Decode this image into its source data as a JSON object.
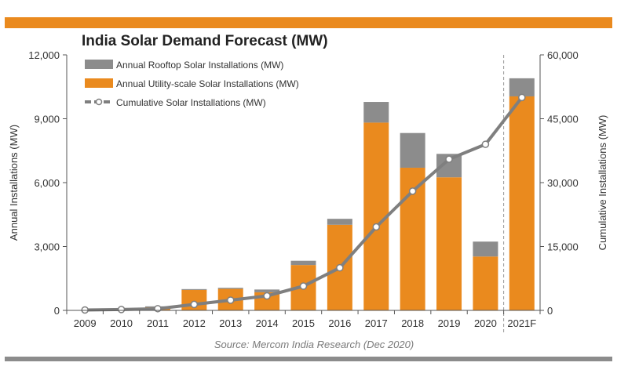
{
  "title": "India Solar Demand Forecast (MW)",
  "source": "Source: Mercom India Research (Dec 2020)",
  "colors": {
    "rooftop": "#8C8C8C",
    "utility": "#EA8A1E",
    "cumulative": "#7F7F7F",
    "accent_bar": "#EA8A1E"
  },
  "chart_data": {
    "type": "bar",
    "stacked": true,
    "categories": [
      "2009",
      "2010",
      "2011",
      "2012",
      "2013",
      "2014",
      "2015",
      "2016",
      "2017",
      "2018",
      "2019",
      "2020",
      "2021F"
    ],
    "series": [
      {
        "name": "Annual Utility-scale Solar Installations (MW)",
        "axis": "left",
        "values": [
          10,
          30,
          150,
          960,
          1010,
          850,
          2130,
          4020,
          8820,
          6700,
          6250,
          2530,
          10050
        ]
      },
      {
        "name": "Annual Rooftop Solar Installations (MW)",
        "axis": "left",
        "values": [
          5,
          10,
          40,
          40,
          50,
          130,
          200,
          280,
          970,
          1630,
          1100,
          700,
          850
        ]
      },
      {
        "name": "Cumulative Solar Installations (MW)",
        "type": "line",
        "axis": "right",
        "values": [
          100,
          200,
          400,
          1400,
          2400,
          3400,
          5700,
          10000,
          19600,
          28000,
          35500,
          39000,
          50000
        ]
      }
    ],
    "ylabel": "Annual Installations (MW)",
    "y2label": "Cumulative Installations (MW)",
    "ylim": [
      0,
      12000
    ],
    "y2lim": [
      0,
      60000
    ],
    "yticks": [
      "0",
      "3,000",
      "6,000",
      "9,000",
      "12,000"
    ],
    "y2ticks": [
      "0",
      "15,000",
      "30,000",
      "45,000",
      "60,000"
    ],
    "forecast_divider_after": "2020",
    "legend_position": "top-left",
    "grid": false
  }
}
